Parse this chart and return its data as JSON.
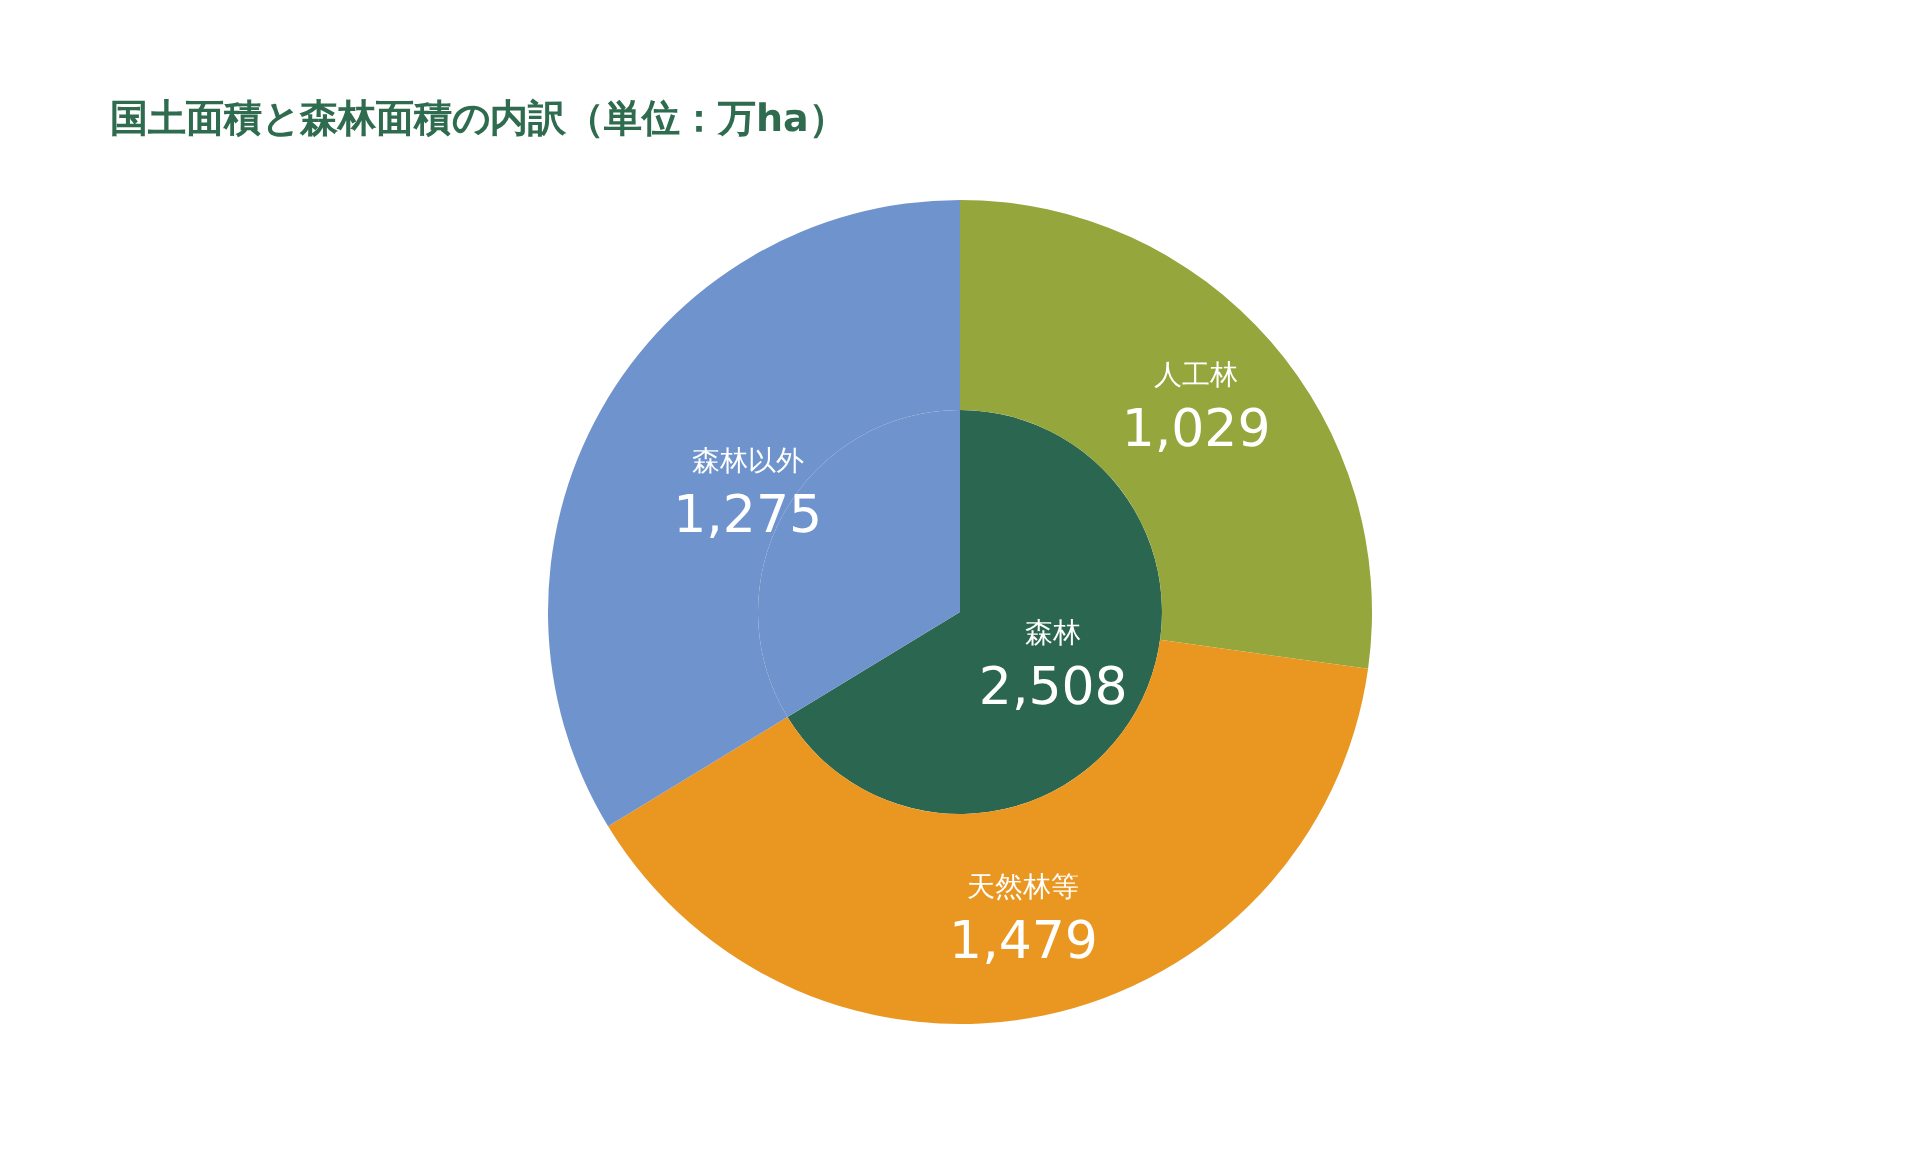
{
  "chart_data": [
    {
      "type": "pie",
      "title": "国土面積と森林面積の内訳（単位：万ha）",
      "categories": [
        "森林",
        null
      ],
      "values": [
        2508,
        1275
      ],
      "colors": [
        "#2a6650",
        "#6f93cc"
      ],
      "value_labels": [
        "2,508",
        null
      ]
    },
    {
      "type": "donut",
      "categories": [
        "人工林",
        "天然林等",
        "森林以外"
      ],
      "values": [
        1029,
        1479,
        1275
      ],
      "colors": [
        "#94a63c",
        "#ea9722",
        "#6f93cc"
      ],
      "value_labels": [
        "1,029",
        "1,479",
        "1,275"
      ]
    }
  ]
}
